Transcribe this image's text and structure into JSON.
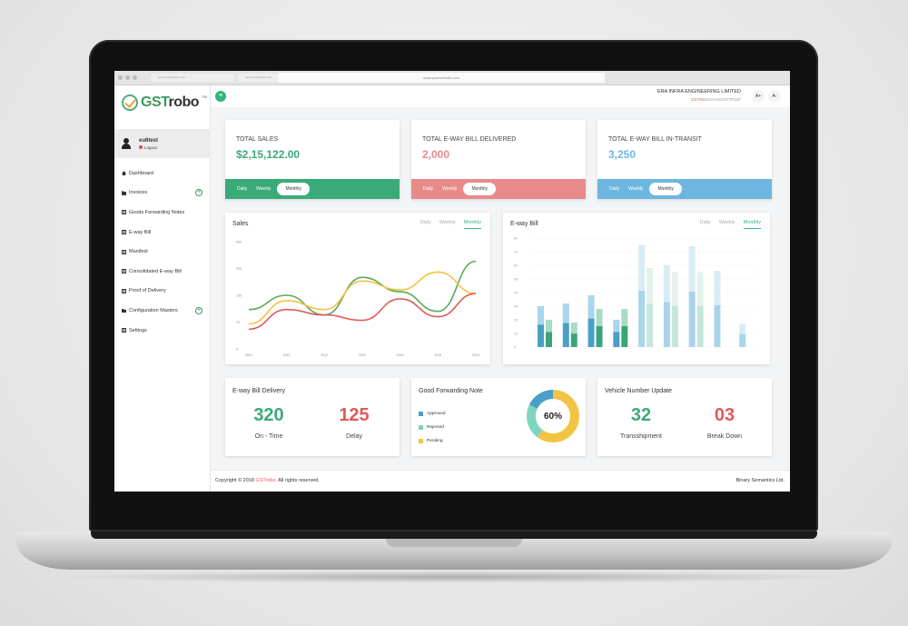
{
  "browser": {
    "tabs": [
      "www.yourwebsite.com",
      "www.yourwebsite.com",
      "www.yourwebsite.com"
    ],
    "url": "www.yourwebsite.com"
  },
  "sidebar": {
    "logo_gst": "GST",
    "logo_robo": "robo",
    "logo_tm": "TM",
    "username": "eu6test",
    "logout": "Logout",
    "items": [
      {
        "label": "Dashboard",
        "icon": "home-icon"
      },
      {
        "label": "Invoices",
        "icon": "folder-icon",
        "expandable": true
      },
      {
        "label": "Goods Forwarding Notes",
        "icon": "bank-icon"
      },
      {
        "label": "E-way Bill",
        "icon": "bank-icon"
      },
      {
        "label": "Manifest",
        "icon": "bank-icon"
      },
      {
        "label": "Consolidated E-way Bill",
        "icon": "bank-icon"
      },
      {
        "label": "Proof of Delivery",
        "icon": "bank-icon"
      },
      {
        "label": "Configuration Masters",
        "icon": "folder-icon",
        "expandable": true
      },
      {
        "label": "Settings",
        "icon": "bank-icon"
      }
    ]
  },
  "header": {
    "company": "ERA INFRA ENGINEERING LIMITED",
    "gstin_label": "GSTIN",
    "gstin": "33AAACE3377P1ZF",
    "font_up": "A+",
    "font_down": "A-",
    "menu_icon": "≡"
  },
  "stats": [
    {
      "label": "TOTAL SALES",
      "value": "$2,15,122.00",
      "color": "#3aaa78",
      "periods": [
        "Daily",
        "Weekly",
        "Monthly"
      ],
      "active": "Monthly"
    },
    {
      "label": "TOTAL E-WAY BILL DELIVERED",
      "value": "2,000",
      "color": "#e88a8a",
      "periods": [
        "Daily",
        "Weekly",
        "Monthly"
      ],
      "active": "Monthly"
    },
    {
      "label": "TOTAL E-WAY BILL IN-TRANSIT",
      "value": "3,250",
      "color": "#6db6e0",
      "periods": [
        "Daily",
        "Weekly",
        "Monthly"
      ],
      "active": "Monthly"
    }
  ],
  "sales_chart": {
    "title": "Sales",
    "tabs": [
      "Daily",
      "Weekly",
      "Monthly"
    ],
    "active": "Monthly"
  },
  "eway_chart": {
    "title": "E-way Bill",
    "tabs": [
      "Daily",
      "Weekly",
      "Monthly"
    ],
    "active": "Monthly"
  },
  "delivery": {
    "title": "E-way Bill Delivery",
    "on_time_value": "320",
    "on_time_label": "On - Time",
    "delay_value": "125",
    "delay_label": "Delay"
  },
  "gfn": {
    "title": "Good Forwarding Note",
    "legend": [
      {
        "label": "Approved",
        "color": "#4a9fc8"
      },
      {
        "label": "Rejected",
        "color": "#7ed6c0"
      },
      {
        "label": "Pending",
        "color": "#f2c443"
      }
    ],
    "center_label": "60%",
    "percent": 60
  },
  "vehicle": {
    "title": "Vehicle Number Update",
    "trans_value": "32",
    "trans_label": "Transshipment",
    "break_value": "03",
    "break_label": "Break Down"
  },
  "footer": {
    "copyright_prefix": "Copyright © 2018",
    "brand": "GSTrobo.",
    "copyright_suffix": "All rights reserved.",
    "company": "Binary Semantics Ltd."
  },
  "chart_data": [
    {
      "type": "line",
      "title": "Sales",
      "x": [
        "2012",
        "2013",
        "2012",
        "2015",
        "2016",
        "2015",
        "2016"
      ],
      "y_ticks": [
        "0",
        "75",
        "150",
        "225",
        "300"
      ],
      "ylim": [
        0,
        300
      ],
      "series": [
        {
          "color": "#5aaa55",
          "values": [
            110,
            150,
            95,
            200,
            160,
            105,
            245
          ]
        },
        {
          "color": "#f2c443",
          "values": [
            70,
            135,
            110,
            190,
            165,
            215,
            155
          ]
        },
        {
          "color": "#e05a5a",
          "values": [
            55,
            110,
            95,
            80,
            140,
            90,
            155
          ]
        }
      ]
    },
    {
      "type": "bar",
      "title": "E-way Bill",
      "y_ticks": [
        "0",
        "10",
        "20",
        "30",
        "40",
        "50",
        "60",
        "70",
        "80"
      ],
      "ylim": [
        0,
        80
      ],
      "bar_groups": [
        {
          "tall": 30,
          "short": 20,
          "dark": true
        },
        {
          "tall": 32,
          "short": 18,
          "dark": true
        },
        {
          "tall": 38,
          "short": 28,
          "dark": true
        },
        {
          "tall": 20,
          "short": 28,
          "dark": true
        },
        {
          "tall": 75,
          "short": 58,
          "dark": false
        },
        {
          "tall": 60,
          "short": 55,
          "dark": false
        },
        {
          "tall": 74,
          "short": 55,
          "dark": false
        },
        {
          "tall": 56,
          "short": 0,
          "dark": false
        },
        {
          "tall": 17,
          "short": 0,
          "dark": false
        }
      ]
    }
  ]
}
